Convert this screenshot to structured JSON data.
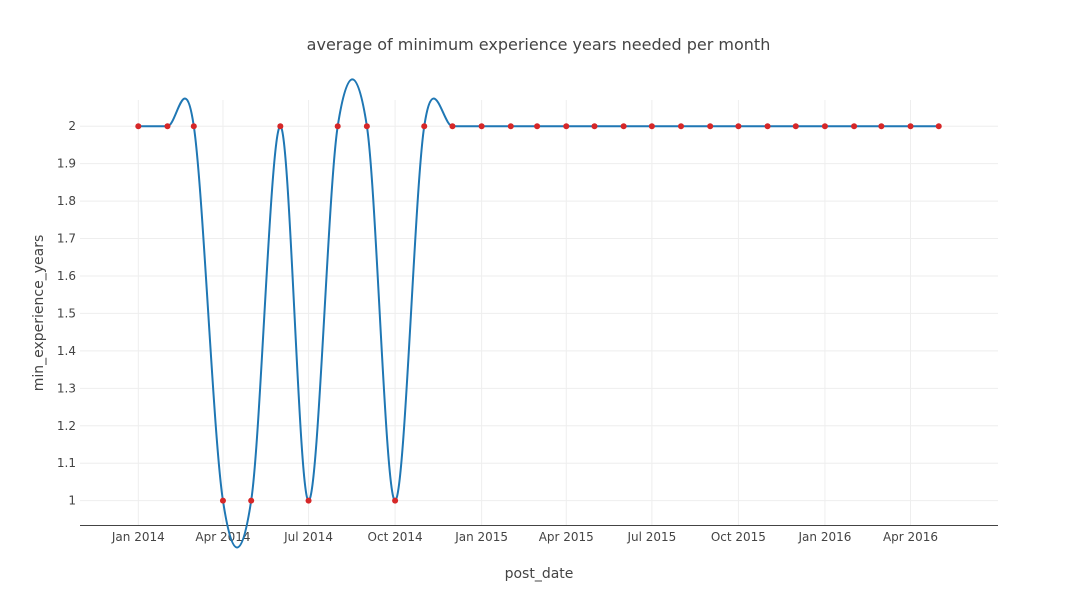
{
  "chart_data": {
    "type": "line",
    "title": "average of minimum experience years needed  per month",
    "xlabel": "post_date",
    "ylabel": "min_experience_years",
    "x": [
      "2014-01",
      "2014-02",
      "2014-03",
      "2014-04",
      "2014-05",
      "2014-06",
      "2014-07",
      "2014-08",
      "2014-09",
      "2014-10",
      "2014-11",
      "2014-12",
      "2015-01",
      "2015-02",
      "2015-03",
      "2015-04",
      "2015-05",
      "2015-06",
      "2015-07",
      "2015-08",
      "2015-09",
      "2015-10",
      "2015-11",
      "2015-12",
      "2016-01",
      "2016-02",
      "2016-03",
      "2016-04",
      "2016-05"
    ],
    "y": [
      2,
      2,
      2,
      1,
      1,
      2,
      1,
      2,
      2,
      1,
      2,
      2,
      2,
      2,
      2,
      2,
      2,
      2,
      2,
      2,
      2,
      2,
      2,
      2,
      2,
      2,
      2,
      2,
      2
    ],
    "xticks": [
      {
        "date": "2014-01",
        "label": "Jan 2014"
      },
      {
        "date": "2014-04",
        "label": "Apr 2014"
      },
      {
        "date": "2014-07",
        "label": "Jul 2014"
      },
      {
        "date": "2014-10",
        "label": "Oct 2014"
      },
      {
        "date": "2015-01",
        "label": "Jan 2015"
      },
      {
        "date": "2015-04",
        "label": "Apr 2015"
      },
      {
        "date": "2015-07",
        "label": "Jul 2015"
      },
      {
        "date": "2015-10",
        "label": "Oct 2015"
      },
      {
        "date": "2016-01",
        "label": "Jan 2016"
      },
      {
        "date": "2016-04",
        "label": "Apr 2016"
      }
    ],
    "yticks": [
      {
        "value": 1,
        "label": "1"
      },
      {
        "value": 1.1,
        "label": "1.1"
      },
      {
        "value": 1.2,
        "label": "1.2"
      },
      {
        "value": 1.3,
        "label": "1.3"
      },
      {
        "value": 1.4,
        "label": "1.4"
      },
      {
        "value": 1.5,
        "label": "1.5"
      },
      {
        "value": 1.6,
        "label": "1.6"
      },
      {
        "value": 1.7,
        "label": "1.7"
      },
      {
        "value": 1.8,
        "label": "1.8"
      },
      {
        "value": 1.9,
        "label": "1.9"
      },
      {
        "value": 2,
        "label": "2"
      }
    ],
    "ylim": [
      0.935,
      2.07
    ],
    "xlim": [
      "2013-10-31",
      "2016-07-03"
    ],
    "line_shape": "spline",
    "grid": true,
    "colors": {
      "line": "#1f77b4",
      "marker": "#d62728"
    }
  }
}
